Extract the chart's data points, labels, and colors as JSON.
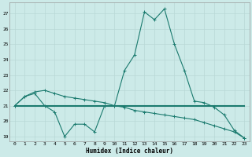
{
  "xlabel": "Humidex (Indice chaleur)",
  "x": [
    0,
    1,
    2,
    3,
    4,
    5,
    6,
    7,
    8,
    9,
    10,
    11,
    12,
    13,
    14,
    15,
    16,
    17,
    18,
    19,
    20,
    21,
    22,
    23
  ],
  "line1": [
    21.0,
    21.6,
    21.8,
    21.0,
    20.6,
    19.0,
    19.8,
    19.8,
    19.3,
    21.0,
    21.0,
    23.3,
    24.3,
    27.1,
    26.6,
    27.3,
    25.0,
    23.3,
    21.3,
    21.2,
    20.9,
    20.4,
    19.4,
    18.9
  ],
  "line2": [
    21.0,
    21.0,
    21.0,
    21.0,
    21.0,
    21.0,
    21.0,
    21.0,
    21.0,
    21.0,
    21.0,
    21.0,
    21.0,
    21.0,
    21.0,
    21.0,
    21.0,
    21.0,
    21.0,
    21.0,
    21.0,
    21.0,
    21.0,
    21.0
  ],
  "line3": [
    21.0,
    21.6,
    21.9,
    22.0,
    21.8,
    21.6,
    21.5,
    21.4,
    21.3,
    21.2,
    21.0,
    20.9,
    20.7,
    20.6,
    20.5,
    20.4,
    20.3,
    20.2,
    20.1,
    19.9,
    19.7,
    19.5,
    19.3,
    18.9
  ],
  "bg_color": "#cceae8",
  "grid_color": "#b8d8d6",
  "line_color": "#1a7a6e",
  "ylim_min": 18.7,
  "ylim_max": 27.7,
  "yticks": [
    19,
    20,
    21,
    22,
    23,
    24,
    25,
    26,
    27
  ],
  "xticks": [
    0,
    1,
    2,
    3,
    4,
    5,
    6,
    7,
    8,
    9,
    10,
    11,
    12,
    13,
    14,
    15,
    16,
    17,
    18,
    19,
    20,
    21,
    22,
    23
  ]
}
